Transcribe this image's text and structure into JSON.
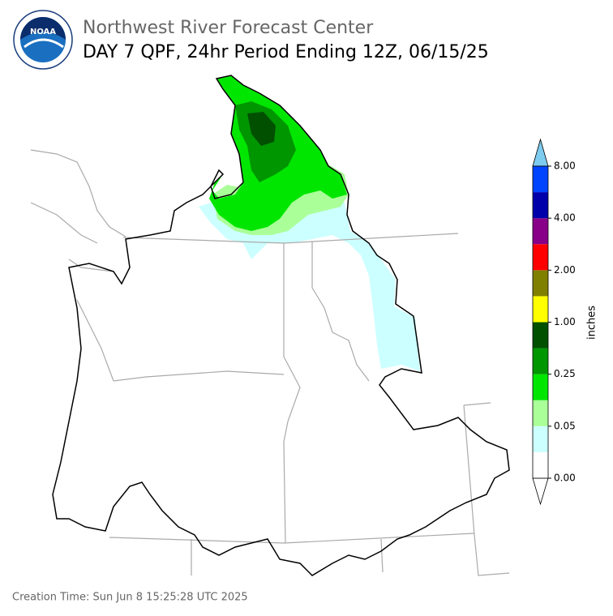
{
  "header": {
    "agency": "Northwest River Forecast Center",
    "title": "DAY 7 QPF, 24hr Period Ending 12Z, 06/15/25",
    "logo_text": "NOAA"
  },
  "colorbar": {
    "label": "inches",
    "ticks": [
      {
        "value": 0,
        "label": "0.00"
      },
      {
        "value": 0.05,
        "label": "0.05"
      },
      {
        "value": 0.25,
        "label": "0.25"
      },
      {
        "value": 1,
        "label": "1.00"
      },
      {
        "value": 2,
        "label": "2.00"
      },
      {
        "value": 4,
        "label": "4.00"
      },
      {
        "value": 8,
        "label": "8.00"
      }
    ],
    "colors": [
      "#ffffff",
      "#ccffff",
      "#aaff99",
      "#00e600",
      "#009600",
      "#005000",
      "#ffff00",
      "#808000",
      "#ff0000",
      "#880088",
      "#0000aa",
      "#0044ff"
    ],
    "under_color": "#ffffff",
    "over_color": "#7ecbf0"
  },
  "footer": {
    "creation_time": "Creation Time: Sun Jun 8 15:25:28 UTC 2025"
  }
}
